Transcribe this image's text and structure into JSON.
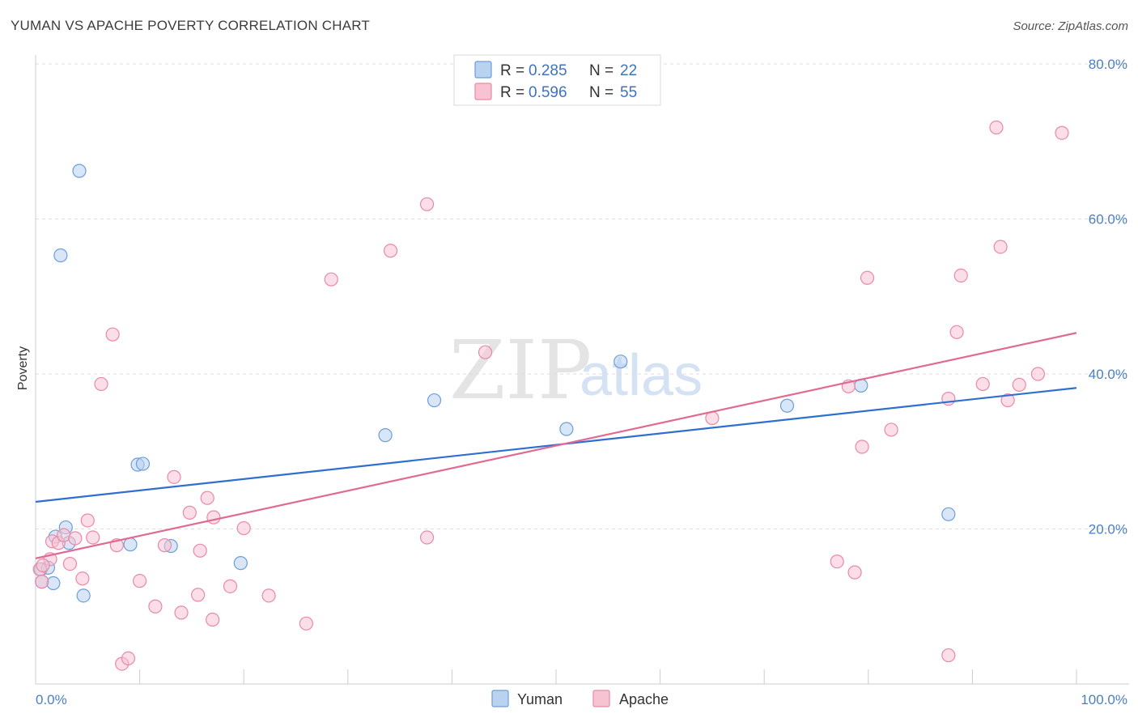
{
  "header": {
    "title": "YUMAN VS APACHE POVERTY CORRELATION CHART",
    "source": "Source: ZipAtlas.com"
  },
  "legend": {
    "r_label": "R =",
    "n_label": "N =",
    "rows": [
      {
        "series": "Yuman",
        "r": "0.285",
        "n": "22"
      },
      {
        "series": "Apache",
        "r": "0.596",
        "n": "55"
      }
    ]
  },
  "watermark": {
    "zip": "ZIP",
    "atlas": "atlas"
  },
  "colors": {
    "yuman_fill": "#b8d2f0",
    "yuman_stroke": "#6d9ed8",
    "yuman_line": "#2f6fcf",
    "apache_fill": "#f7c3d3",
    "apache_stroke": "#e889a8",
    "apache_line": "#e06a93",
    "grid": "#dddddd",
    "tick_label": "#4a7ec6"
  },
  "chart_data": {
    "type": "scatter",
    "title": "YUMAN VS APACHE POVERTY CORRELATION CHART",
    "xlabel": "",
    "ylabel": "Poverty",
    "xlim": [
      0,
      100
    ],
    "ylim": [
      0,
      80
    ],
    "y_ticks": [
      {
        "value": 20,
        "label": "20.0%"
      },
      {
        "value": 40,
        "label": "40.0%"
      },
      {
        "value": 60,
        "label": "60.0%"
      },
      {
        "value": 80,
        "label": "80.0%"
      }
    ],
    "x_tick_labels": [
      {
        "value": 0,
        "label": "0.0%"
      },
      {
        "value": 100,
        "label": "100.0%"
      }
    ],
    "x_minor_ticks": [
      10,
      20,
      30,
      40,
      50,
      60,
      70,
      80,
      90,
      100
    ],
    "grid": true,
    "series": [
      {
        "name": "Yuman",
        "points": [
          [
            0.5,
            14.8
          ],
          [
            0.6,
            13.2
          ],
          [
            1.2,
            15.0
          ],
          [
            1.7,
            13.0
          ],
          [
            1.9,
            19.0
          ],
          [
            2.9,
            20.2
          ],
          [
            3.2,
            18.2
          ],
          [
            4.2,
            66.2
          ],
          [
            4.6,
            11.4
          ],
          [
            2.4,
            55.3
          ],
          [
            9.1,
            18.0
          ],
          [
            9.8,
            28.3
          ],
          [
            10.3,
            28.4
          ],
          [
            13.0,
            17.8
          ],
          [
            19.7,
            15.6
          ],
          [
            33.6,
            32.1
          ],
          [
            38.3,
            36.6
          ],
          [
            51.0,
            32.9
          ],
          [
            56.2,
            41.6
          ],
          [
            72.2,
            35.9
          ],
          [
            79.3,
            38.5
          ],
          [
            87.7,
            21.9
          ]
        ],
        "trend": {
          "x": [
            0,
            100
          ],
          "y": [
            23.5,
            38.2
          ]
        }
      },
      {
        "name": "Apache",
        "points": [
          [
            0.4,
            14.8
          ],
          [
            0.6,
            13.2
          ],
          [
            1.4,
            16.1
          ],
          [
            1.6,
            18.4
          ],
          [
            2.2,
            18.2
          ],
          [
            2.7,
            19.2
          ],
          [
            3.3,
            15.5
          ],
          [
            3.8,
            18.8
          ],
          [
            4.5,
            13.6
          ],
          [
            5.0,
            21.1
          ],
          [
            5.5,
            18.9
          ],
          [
            6.3,
            38.7
          ],
          [
            7.4,
            45.1
          ],
          [
            7.8,
            17.9
          ],
          [
            8.3,
            2.6
          ],
          [
            8.9,
            3.3
          ],
          [
            10.0,
            13.3
          ],
          [
            11.5,
            10.0
          ],
          [
            12.4,
            17.9
          ],
          [
            13.3,
            26.7
          ],
          [
            14.0,
            9.2
          ],
          [
            14.8,
            22.1
          ],
          [
            15.6,
            11.5
          ],
          [
            15.8,
            17.2
          ],
          [
            16.5,
            24.0
          ],
          [
            17.0,
            8.3
          ],
          [
            17.1,
            21.5
          ],
          [
            18.7,
            12.6
          ],
          [
            20.0,
            20.1
          ],
          [
            22.4,
            11.4
          ],
          [
            26.0,
            7.8
          ],
          [
            28.4,
            52.2
          ],
          [
            34.1,
            55.9
          ],
          [
            37.6,
            61.9
          ],
          [
            37.6,
            18.9
          ],
          [
            43.2,
            42.8
          ],
          [
            65.0,
            34.3
          ],
          [
            77.0,
            15.8
          ],
          [
            78.7,
            14.4
          ],
          [
            78.1,
            38.4
          ],
          [
            79.4,
            30.6
          ],
          [
            79.9,
            52.4
          ],
          [
            82.2,
            32.8
          ],
          [
            87.7,
            36.8
          ],
          [
            87.7,
            3.7
          ],
          [
            88.5,
            45.4
          ],
          [
            88.9,
            52.7
          ],
          [
            91.0,
            38.7
          ],
          [
            92.3,
            71.8
          ],
          [
            92.7,
            56.4
          ],
          [
            93.4,
            36.6
          ],
          [
            94.5,
            38.6
          ],
          [
            96.3,
            40.0
          ],
          [
            98.6,
            71.1
          ],
          [
            0.7,
            15.3
          ]
        ],
        "trend": {
          "x": [
            0,
            100
          ],
          "y": [
            16.2,
            45.3
          ]
        }
      }
    ],
    "bottom_legend": [
      "Yuman",
      "Apache"
    ]
  }
}
